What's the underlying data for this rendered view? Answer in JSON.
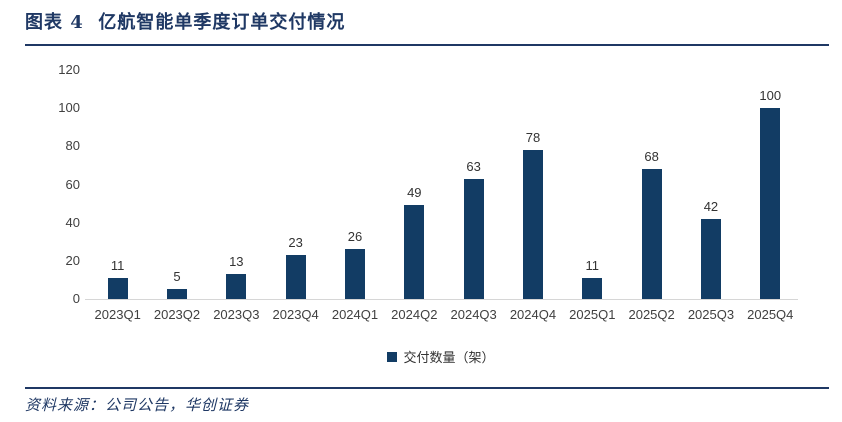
{
  "header": {
    "title": "图表 4  亿航智能单季度订单交付情况"
  },
  "legend": {
    "label": "交付数量（架）"
  },
  "source": "资料来源：公司公告，华创证券",
  "colors": {
    "accent_navy": "#1F3864",
    "bar": "#123C64",
    "axis_label": "#404040",
    "baseline": "#D6D6D6"
  },
  "chart_data": {
    "type": "bar",
    "title": "亿航智能单季度订单交付情况",
    "categories": [
      "2023Q1",
      "2023Q2",
      "2023Q3",
      "2023Q4",
      "2024Q1",
      "2024Q2",
      "2024Q3",
      "2024Q4",
      "2025Q1",
      "2025Q2",
      "2025Q3",
      "2025Q4"
    ],
    "values": [
      11,
      5,
      13,
      23,
      26,
      49,
      63,
      78,
      11,
      68,
      42,
      100
    ],
    "series_name": "交付数量（架）",
    "xlabel": "",
    "ylabel": "",
    "ylim": [
      0,
      120
    ],
    "yticks": [
      0,
      20,
      40,
      60,
      80,
      100,
      120
    ],
    "grid": false,
    "data_labels": true,
    "legend_position": "bottom",
    "bar_color": "#123C64"
  }
}
